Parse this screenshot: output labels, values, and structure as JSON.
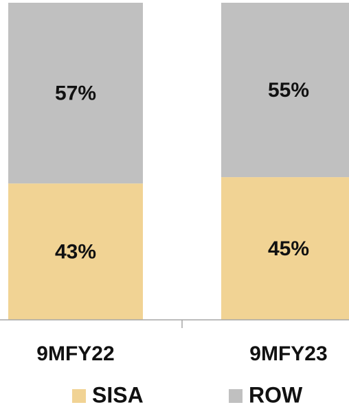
{
  "chart_data": {
    "type": "stacked_bar",
    "categories": [
      "9MFY22",
      "9MFY23"
    ],
    "series": [
      {
        "name": "SISA",
        "color": "#f1d394",
        "values": [
          43,
          45
        ],
        "value_labels": [
          "43%",
          "45%"
        ]
      },
      {
        "name": "ROW",
        "color": "#c0c0c0",
        "values": [
          57,
          55
        ],
        "value_labels": [
          "57%",
          "55%"
        ]
      }
    ],
    "ylim": [
      0,
      100
    ],
    "legend": "bottom"
  }
}
